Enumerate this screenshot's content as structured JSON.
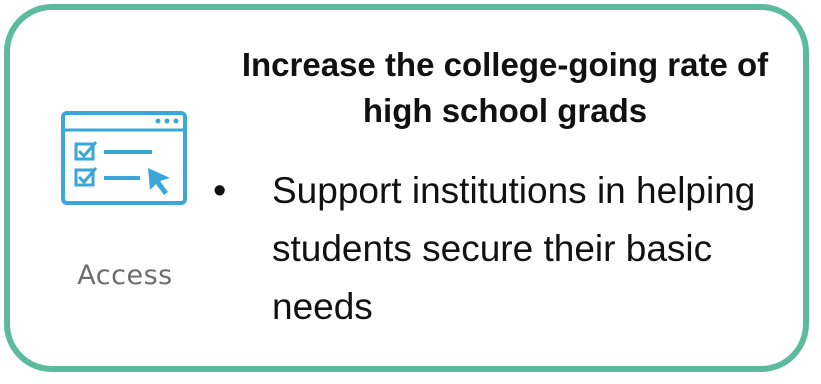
{
  "card": {
    "border_color": "#5dbb9d",
    "title": "Increase the college-going rate of high school grads",
    "bullets": [
      "Support institutions in helping students secure their basic needs"
    ]
  },
  "icon": {
    "name": "checklist-cursor-icon",
    "label": "Access",
    "color": "#3aa7d8"
  }
}
